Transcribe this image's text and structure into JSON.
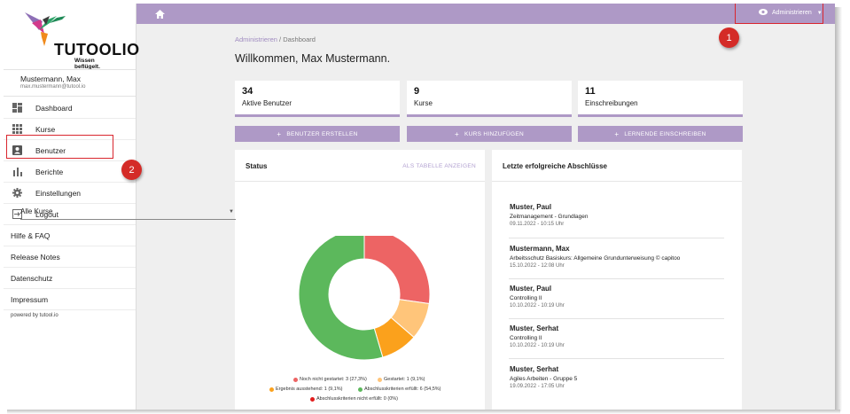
{
  "app": {
    "logo_text": "TUTOOLIO",
    "logo_tagline": "Wissen beflügelt."
  },
  "user": {
    "name": "Mustermann, Max",
    "email": "max.mustermann@tutool.io"
  },
  "sidebar": {
    "items": [
      {
        "label": "Dashboard",
        "icon": "dashboard-icon"
      },
      {
        "label": "Kurse",
        "icon": "grid-icon"
      },
      {
        "label": "Benutzer",
        "icon": "user-card-icon"
      },
      {
        "label": "Berichte",
        "icon": "bar-chart-icon"
      },
      {
        "label": "Einstellungen",
        "icon": "gear-icon"
      },
      {
        "label": "Logout",
        "icon": "logout-icon"
      }
    ],
    "links": [
      "Hilfe & FAQ",
      "Release Notes",
      "Datenschutz",
      "Impressum"
    ],
    "powered_by": "powered by tutool.io"
  },
  "topbar": {
    "home_icon": "home-icon",
    "role_label": "Administrieren"
  },
  "breadcrumb": {
    "parent": "Administrieren",
    "separator": "/",
    "current": "Dashboard"
  },
  "welcome": "Willkommen, Max Mustermann.",
  "stats": [
    {
      "value": "34",
      "label": "Aktive Benutzer"
    },
    {
      "value": "9",
      "label": "Kurse"
    },
    {
      "value": "11",
      "label": "Einschreibungen"
    }
  ],
  "actions": [
    {
      "label": "BENUTZER ERSTELLEN"
    },
    {
      "label": "KURS HINZUFÜGEN"
    },
    {
      "label": "LERNENDE EINSCHREIBEN"
    }
  ],
  "status_card": {
    "title": "Status",
    "table_link": "ALS TABELLE ANZEIGEN",
    "course_select": "Alle Kurse"
  },
  "chart_data": {
    "type": "pie",
    "categories": [
      "Noch nicht gestartet: 3 (27,3%)",
      "Gestartet: 1 (9,1%)",
      "Ergebnis ausstehend: 1 (9,1%)",
      "Abschlusskriterien erfüllt: 6 (54,5%)",
      "Abschlusskriterien nicht erfüllt: 0 (0%)"
    ],
    "values": [
      3,
      1,
      1,
      6,
      0
    ],
    "colors": [
      "#ed6464",
      "#ffc57a",
      "#fba11c",
      "#5cb85c",
      "#e21d1d"
    ],
    "donut": true,
    "legend_position": "bottom"
  },
  "completions_card": {
    "title": "Letzte erfolgreiche Abschlüsse",
    "items": [
      {
        "name": "Muster, Paul",
        "course": "Zeitmanagement - Grundlagen",
        "date": "09.11.2022 - 10:15 Uhr"
      },
      {
        "name": "Mustermann, Max",
        "course": "Arbeitsschutz Basiskurs: Allgemeine Grundunterweisung © capitoo",
        "date": "15.10.2022 - 12:08 Uhr"
      },
      {
        "name": "Muster, Paul",
        "course": "Controlling II",
        "date": "10.10.2022 - 10:19 Uhr"
      },
      {
        "name": "Muster, Serhat",
        "course": "Controlling II",
        "date": "10.10.2022 - 10:19 Uhr"
      },
      {
        "name": "Muster, Serhat",
        "course": "Agiles Arbeiten - Gruppe 5",
        "date": "19.09.2022 - 17:05 Uhr"
      }
    ]
  },
  "annotations": {
    "badge_1": "1",
    "badge_2": "2",
    "highlight_color": "#d9262e"
  },
  "colors": {
    "accent": "#ae99c6",
    "link": "#a08cc0"
  }
}
